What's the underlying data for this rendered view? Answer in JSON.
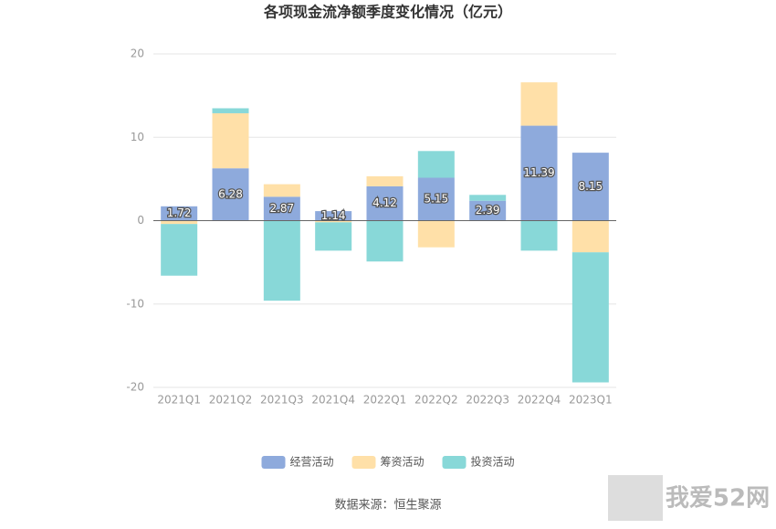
{
  "chart_data": {
    "type": "bar",
    "stacked": true,
    "title": "各项现金流净额季度变化情况（亿元）",
    "categories": [
      "2021Q1",
      "2021Q2",
      "2021Q3",
      "2021Q4",
      "2022Q1",
      "2022Q2",
      "2022Q3",
      "2022Q4",
      "2023Q1"
    ],
    "series": [
      {
        "name": "经营活动",
        "color": "#8eaadc",
        "show_labels": true,
        "values": [
          1.72,
          6.28,
          2.87,
          1.14,
          4.12,
          5.15,
          2.39,
          11.39,
          8.15
        ]
      },
      {
        "name": "筹资活动",
        "color": "#ffe0a8",
        "show_labels": false,
        "values": [
          -0.4,
          6.6,
          1.5,
          -0.2,
          1.2,
          -3.2,
          0,
          5.2,
          -3.8
        ]
      },
      {
        "name": "投资活动",
        "color": "#88d8d8",
        "show_labels": false,
        "values": [
          -6.2,
          0.6,
          -9.6,
          -3.4,
          -4.9,
          3.2,
          0.7,
          -3.6,
          -15.6
        ]
      }
    ],
    "ylim": [
      -20,
      20
    ],
    "yticks": [
      -20,
      -10,
      0,
      10,
      20
    ],
    "grid": true,
    "source": "数据来源：恒生聚源",
    "watermark": "我爱52网"
  }
}
